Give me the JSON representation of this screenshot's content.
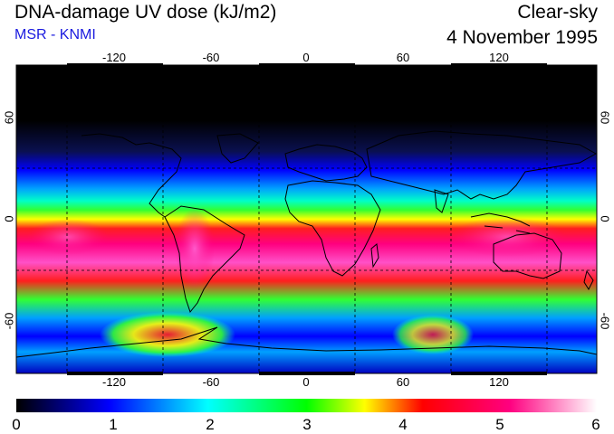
{
  "header": {
    "title": "DNA-damage UV dose (kJ/m2)",
    "source": "MSR - KNMI",
    "condition": "Clear-sky",
    "date": "4 November 1995"
  },
  "map": {
    "lon_range": [
      -180,
      180
    ],
    "lat_range": [
      -90,
      90
    ],
    "lon_ticks": [
      "-120",
      "-60",
      "0",
      "60",
      "120"
    ],
    "lat_ticks": [
      "60",
      "0",
      "-60"
    ],
    "gridline_lons": [
      -150,
      -90,
      -30,
      30,
      90,
      150
    ],
    "gridline_lats": [
      30,
      -30
    ]
  },
  "colorbar": {
    "labels": [
      "0",
      "1",
      "2",
      "3",
      "4",
      "5",
      "6"
    ],
    "min": 0,
    "max": 6,
    "stops": [
      "#000000",
      "#0000ff",
      "#00ffff",
      "#00ff00",
      "#ffff00",
      "#ff0000",
      "#ff0080",
      "#ffffff"
    ]
  },
  "colors": {
    "band_0": "#000000",
    "band_1": "#0a1050",
    "band_2": "#0000ff",
    "band_3": "#00a0ff",
    "band_4": "#00ffc8",
    "band_5": "#32ff32",
    "band_6": "#ffff00",
    "band_7": "#ff1e1e",
    "band_8": "#ff0080",
    "band_9": "#ff50c8",
    "accent": "#1a1adf"
  }
}
